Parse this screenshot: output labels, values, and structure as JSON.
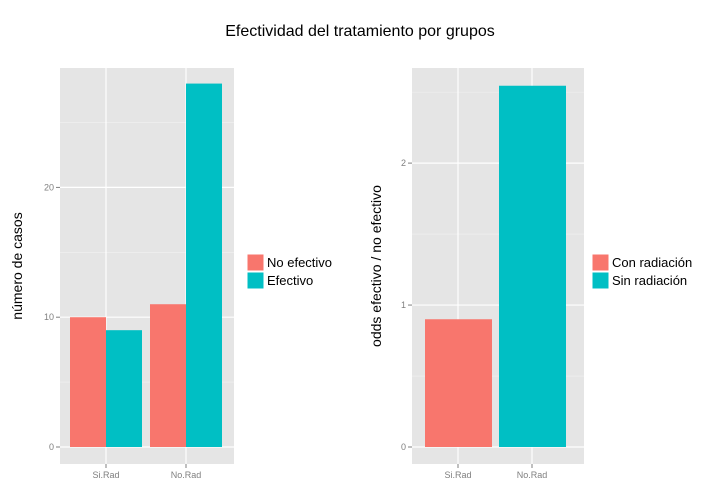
{
  "title": "Efectividad del tratamiento por grupos",
  "colors": {
    "salmon": "#F8766D",
    "teal": "#00BFC4",
    "panel": "#E5E5E5",
    "grid": "#FFFFFF"
  },
  "chart_data": [
    {
      "type": "bar",
      "categories": [
        "Si.Rad",
        "No.Rad"
      ],
      "series": [
        {
          "name": "No efectivo",
          "color": "#F8766D",
          "values": [
            10,
            11
          ]
        },
        {
          "name": "Efectivo",
          "color": "#00BFC4",
          "values": [
            9,
            28
          ]
        }
      ],
      "ylabel": "número de casos",
      "ylim": [
        0,
        29.2
      ],
      "yticks": [
        0,
        10,
        20
      ],
      "grid": true,
      "legend": "right"
    },
    {
      "type": "bar",
      "categories": [
        "Si.Rad",
        "No.Rad"
      ],
      "series": [
        {
          "name": "Con radiación",
          "color": "#F8766D",
          "values": [
            0.9,
            null
          ]
        },
        {
          "name": "Sin radiación",
          "color": "#00BFC4",
          "values": [
            null,
            2.545
          ]
        }
      ],
      "ylabel": "odds efectivo / no efectivo",
      "ylim": [
        0,
        2.67
      ],
      "yticks": [
        0,
        1,
        2
      ],
      "grid": true,
      "legend": "right"
    }
  ]
}
